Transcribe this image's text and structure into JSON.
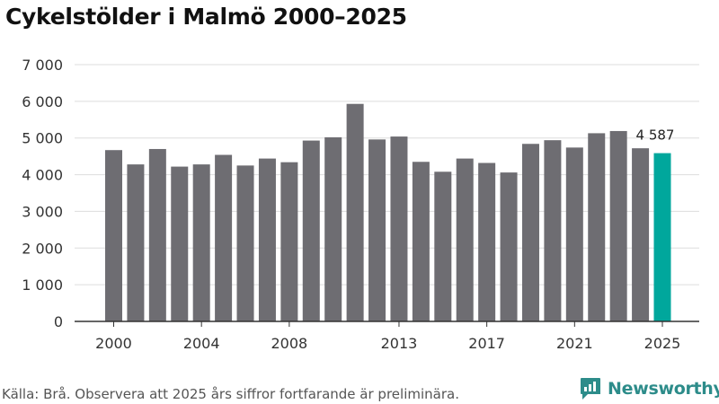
{
  "title": "Cykelstölder i Malmö 2000–2025",
  "source_text": "Källa: Brå. Observera att 2025 års siffror fortfarande är preliminära.",
  "brand": {
    "name": "Newsworthy",
    "icon": "newsworthy-logo-icon",
    "color": "#2d8c8a"
  },
  "colors": {
    "bar": "#6e6d72",
    "highlight": "#00a79c",
    "grid": "#dddddd",
    "axis": "#333333"
  },
  "chart_data": {
    "type": "bar",
    "title": "Cykelstölder i Malmö 2000–2025",
    "xlabel": "",
    "ylabel": "",
    "ylim": [
      0,
      7000
    ],
    "grid": true,
    "categories": [
      "2000",
      "2001",
      "2002",
      "2003",
      "2004",
      "2005",
      "2006",
      "2007",
      "2008",
      "2009",
      "2010",
      "2011",
      "2012",
      "2013",
      "2014",
      "2015",
      "2016",
      "2017",
      "2018",
      "2019",
      "2020",
      "2021",
      "2022",
      "2023",
      "2024",
      "2025"
    ],
    "values": [
      4670,
      4280,
      4700,
      4220,
      4280,
      4540,
      4250,
      4440,
      4340,
      4930,
      5020,
      5930,
      4960,
      5040,
      4350,
      4080,
      4440,
      4320,
      4060,
      4840,
      4940,
      4740,
      5130,
      5190,
      4720,
      4587
    ],
    "highlight_index": 25,
    "highlight_label": "4 587",
    "y_ticks": [
      0,
      1000,
      2000,
      3000,
      4000,
      5000,
      6000,
      7000
    ],
    "y_tick_labels": [
      "0",
      "1 000",
      "2 000",
      "3 000",
      "4 000",
      "5 000",
      "6 000",
      "7 000"
    ],
    "x_tick_labels": [
      "2000",
      "2004",
      "2008",
      "2013",
      "2017",
      "2021",
      "2025"
    ]
  }
}
